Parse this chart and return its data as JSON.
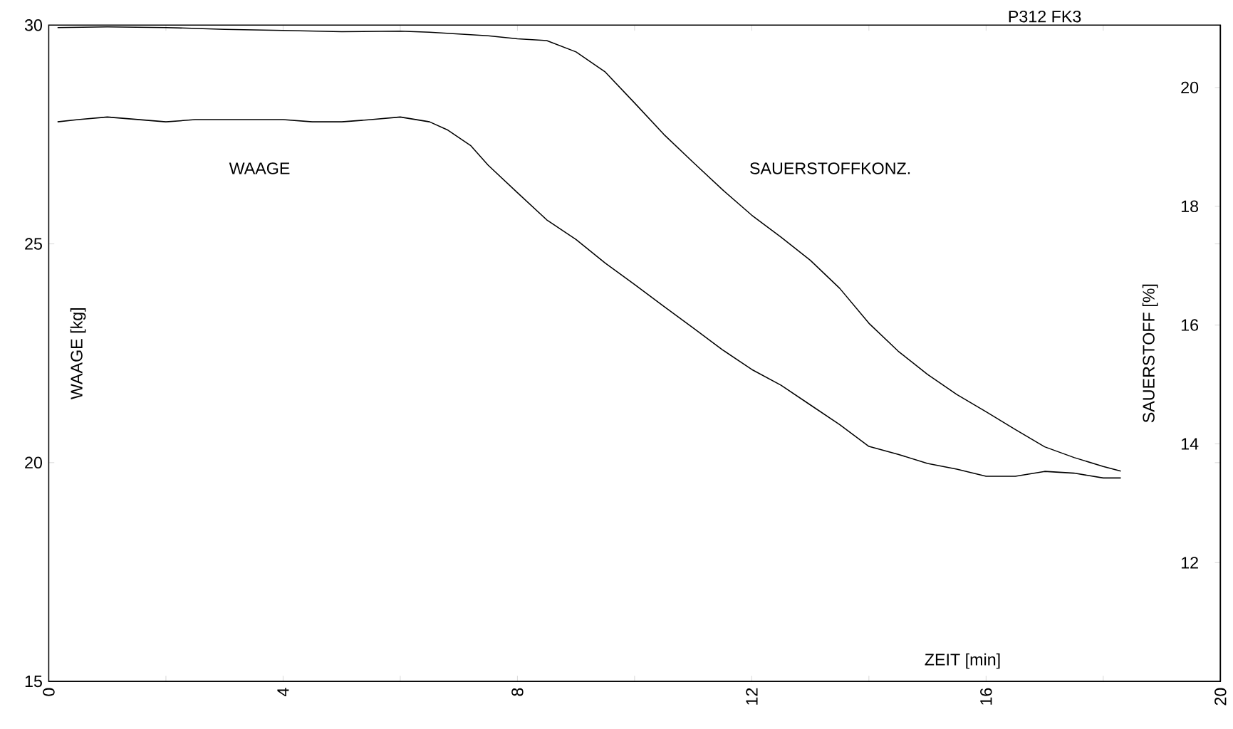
{
  "chart_data": {
    "type": "line",
    "xlabel": "ZEIT [min]",
    "ylabel": "WAAGE [kg]",
    "y2label": "SAUERSTOFF [%]",
    "annotations": [
      "P312   FK3"
    ],
    "xlim": [
      0,
      20
    ],
    "xticks": [
      0,
      {
        "value": 2,
        "label": null
      },
      4,
      {
        "value": 6,
        "label": null
      },
      8,
      {
        "value": 10,
        "label": null
      },
      12,
      {
        "value": 14,
        "label": null
      },
      16,
      {
        "value": 18,
        "label": null
      },
      20
    ],
    "ylim": [
      15,
      30
    ],
    "yticks": [
      15,
      20,
      25,
      30
    ],
    "y2lim": [
      10,
      21.05
    ],
    "y2ticks": [
      12,
      14,
      16,
      18,
      20
    ],
    "series": [
      {
        "name": "WAAGE",
        "color": "#000000",
        "x": [
          0.15,
          0.5,
          1,
          2,
          2.5,
          3,
          4,
          4.5,
          5,
          5.5,
          6,
          6.5,
          6.8,
          7.2,
          7.5,
          8,
          8.5,
          9,
          9.5,
          10,
          10.5,
          11,
          11.5,
          12,
          12.5,
          13,
          13.5,
          14,
          14.5,
          15,
          15.5,
          16,
          16.5,
          17,
          17.5,
          18,
          18.3
        ],
        "values": [
          27.79,
          27.84,
          27.9,
          27.79,
          27.84,
          27.84,
          27.84,
          27.79,
          27.79,
          27.84,
          27.9,
          27.79,
          27.61,
          27.25,
          26.8,
          26.17,
          25.55,
          25.1,
          24.56,
          24.07,
          23.57,
          23.08,
          22.58,
          22.13,
          21.77,
          21.32,
          20.87,
          20.37,
          20.19,
          19.98,
          19.85,
          19.69,
          19.69,
          19.8,
          19.76,
          19.65,
          19.65
        ]
      },
      {
        "name": "SAUERSTOFFKONZ.",
        "color": "#000000",
        "axis": "y2",
        "x": [
          0.15,
          1,
          2,
          3,
          4,
          5,
          6,
          6.5,
          7,
          7.5,
          8,
          8.5,
          9,
          9.5,
          10,
          10.5,
          11,
          11.5,
          12,
          12.5,
          13,
          13.5,
          14,
          14.5,
          15,
          15.5,
          16,
          16.5,
          17,
          17.5,
          18,
          18.3
        ],
        "values": [
          21.01,
          21.02,
          21.01,
          20.98,
          20.96,
          20.94,
          20.95,
          20.93,
          20.9,
          20.87,
          20.82,
          20.79,
          20.6,
          20.26,
          19.74,
          19.21,
          18.74,
          18.28,
          17.85,
          17.48,
          17.09,
          16.62,
          16.03,
          15.56,
          15.17,
          14.83,
          14.54,
          14.24,
          13.95,
          13.77,
          13.62,
          13.54
        ]
      }
    ]
  }
}
